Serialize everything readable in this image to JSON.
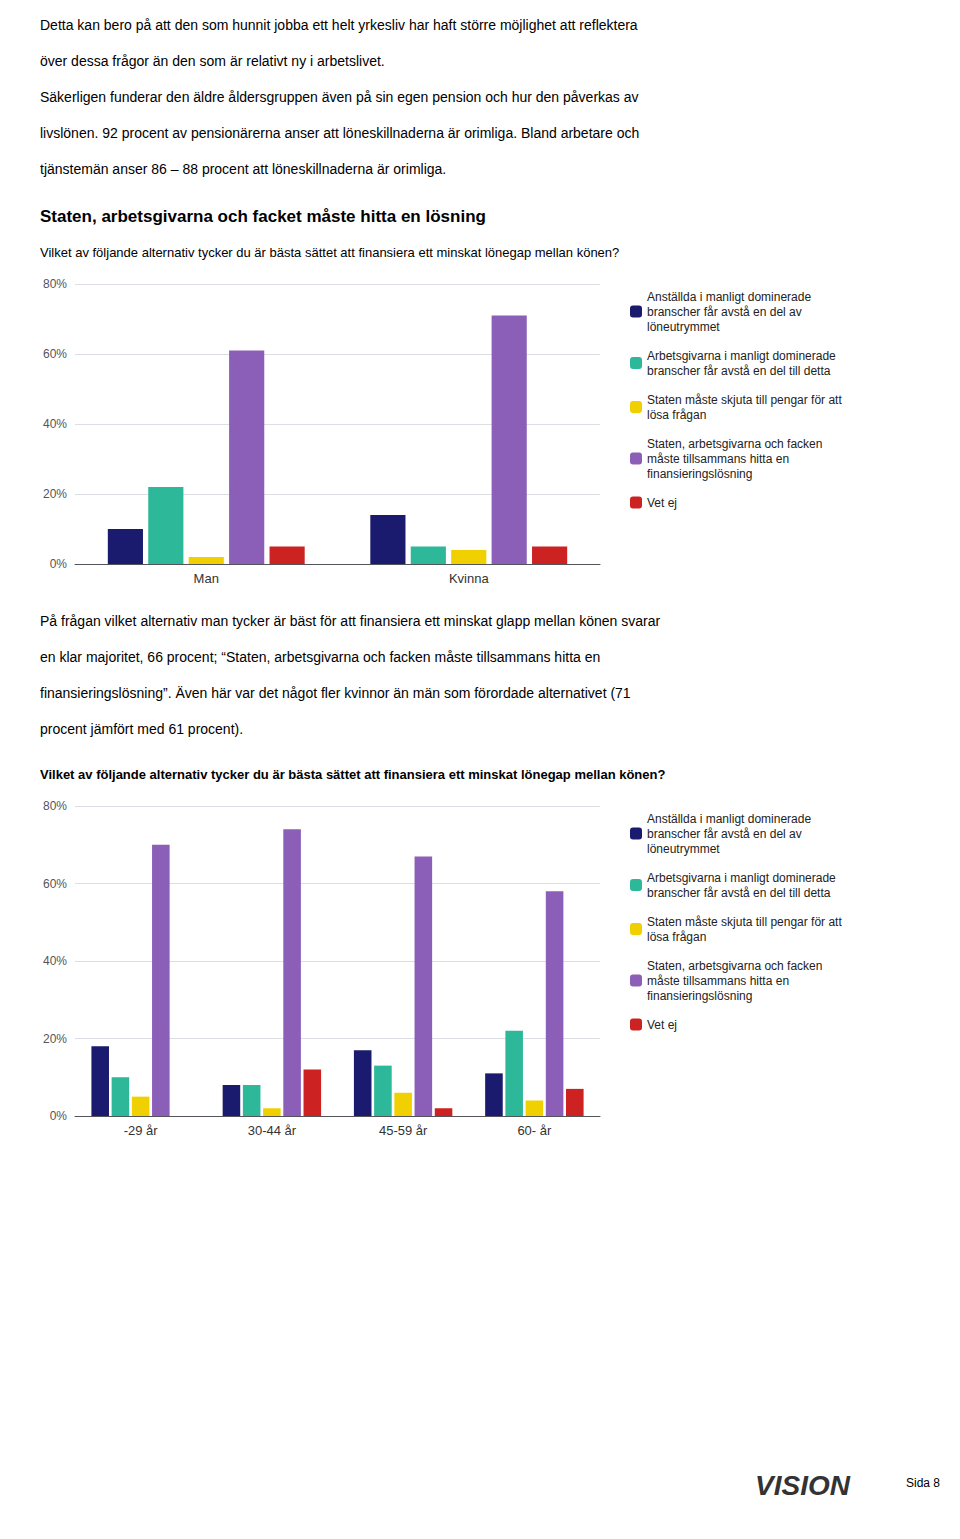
{
  "chart_data": [
    {
      "type": "bar",
      "annotations": [
        "Detta kan bero på att den som hunnit jobba ett helt yrkesliv har haft större möjlighet att reflektera",
        "över dessa frågor än den som är relativt ny i arbetslivet.",
        "Säkerligen funderar den äldre åldersgruppen även på sin egen pension och hur den påverkas av",
        "livslönen. 92 procent av pensionärerna anser att löneskillnaderna är orimliga. Bland arbetare och",
        "tjänstemän anser 86 – 88 procent att löneskillnaderna är orimliga."
      ],
      "title": "Staten, arbetsgivarna och facket måste hitta en lösning",
      "subtitle": "Vilket av följande alternativ tycker du är bästa sättet att finansiera ett minskat lönegap mellan könen?",
      "categories": [
        "Man",
        "Kvinna"
      ],
      "series": [
        {
          "name": "Anställda i manligt dominerade\nbranscher får avstå en del av\nlöneutrymmet",
          "color": "#1a1a6e",
          "values": [
            10,
            14
          ]
        },
        {
          "name": "Arbetsgivarna i manligt dominerade\nbranscher får avstå en del till detta",
          "color": "#2eb89a",
          "values": [
            22,
            5
          ]
        },
        {
          "name": "Staten måste skjuta till pengar för att\nlösa frågan",
          "color": "#f0d000",
          "values": [
            2,
            4
          ]
        },
        {
          "name": "Staten, arbetsgivarna och facken\nmåste tillsammans hitta en\nfinansieringslösning",
          "color": "#8b5eb8",
          "values": [
            61,
            71
          ]
        },
        {
          "name": "Vet ej",
          "color": "#cc2222",
          "values": [
            5,
            5
          ]
        }
      ],
      "ylim": [
        0,
        80
      ],
      "yticks": [
        {
          "value": 0,
          "label": "0%"
        },
        {
          "value": 20,
          "label": "20%"
        },
        {
          "value": 40,
          "label": "40%"
        },
        {
          "value": 60,
          "label": "60%"
        },
        {
          "value": 80,
          "label": "80%"
        }
      ],
      "grid": true,
      "legend": "right"
    },
    {
      "type": "bar",
      "annotations": [
        "På frågan vilket alternativ man tycker är bäst för att finansiera ett minskat glapp mellan könen svarar",
        "en klar majoritet, 66 procent; “Staten, arbetsgivarna och facken måste tillsammans hitta en",
        "finansieringslösning”. Även här var det något fler kvinnor än män som förordade alternativet (71",
        "procent jämfört med 61 procent)."
      ],
      "title": "Vilket av följande alternativ tycker du är bästa sättet att finansiera ett minskat lönegap mellan könen?",
      "categories": [
        "-29 år",
        "30-44 år",
        "45-59 år",
        "60- år"
      ],
      "series": [
        {
          "name": "Anställda i manligt dominerade\nbranscher får avstå en del av\nlöneutrymmet",
          "color": "#1a1a6e",
          "values": [
            18,
            8,
            17,
            11
          ]
        },
        {
          "name": "Arbetsgivarna i manligt dominerade\nbranscher får avstå en del till detta",
          "color": "#2eb89a",
          "values": [
            10,
            8,
            13,
            22
          ]
        },
        {
          "name": "Staten måste skjuta till pengar för att\nlösa frågan",
          "color": "#f0d000",
          "values": [
            5,
            2,
            6,
            4
          ]
        },
        {
          "name": "Staten, arbetsgivarna och facken\nmåste tillsammans hitta en\nfinansieringslösning",
          "color": "#8b5eb8",
          "values": [
            70,
            74,
            67,
            58
          ]
        },
        {
          "name": "Vet ej",
          "color": "#cc2222",
          "values": [
            0,
            12,
            2,
            7
          ]
        }
      ],
      "ylim": [
        0,
        80
      ],
      "yticks": [
        {
          "value": 0,
          "label": "0%"
        },
        {
          "value": 20,
          "label": "20%"
        },
        {
          "value": 40,
          "label": "40%"
        },
        {
          "value": 60,
          "label": "60%"
        },
        {
          "value": 80,
          "label": "80%"
        }
      ],
      "grid": true,
      "legend": "right"
    }
  ],
  "annotations": [
    "VISION",
    "Sida 8"
  ]
}
